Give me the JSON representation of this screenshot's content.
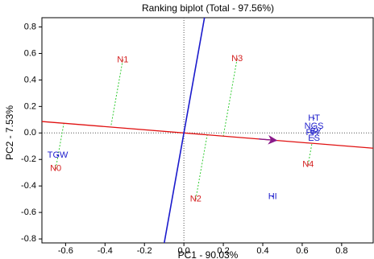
{
  "chart_data": {
    "type": "biplot",
    "title": "Ranking biplot (Total - 97.56%)",
    "x_label": "PC1 - 90.03%",
    "y_label": "PC2 - 7.53%",
    "xlim": [
      -0.72,
      0.96
    ],
    "ylim": [
      -0.83,
      0.87
    ],
    "xticks": [
      -0.6,
      -0.4,
      -0.2,
      {
        "value": 0,
        "label": "0.0"
      },
      0.2,
      0.4,
      0.6,
      0.8
    ],
    "yticks": [
      -0.8,
      -0.6,
      -0.4,
      -0.2,
      {
        "value": 0,
        "label": "0.0"
      },
      0.2,
      0.4,
      0.6,
      0.8
    ],
    "genotypes": {
      "color": "#d42020",
      "labels": [
        "N0",
        "N1",
        "N2",
        "N3",
        "N4"
      ],
      "x": [
        -0.65,
        -0.31,
        0.06,
        0.27,
        0.63
      ],
      "y": [
        -0.27,
        0.55,
        -0.5,
        0.56,
        -0.24
      ]
    },
    "traits": {
      "color": "#1c1ccc",
      "labels": [
        "TGW",
        "HT",
        "NGS",
        "BY",
        "PH",
        "ES",
        "HI"
      ],
      "x": [
        -0.64,
        0.66,
        0.66,
        0.67,
        0.65,
        0.66,
        0.45
      ],
      "y": [
        -0.17,
        0.11,
        0.05,
        0.01,
        0.0,
        -0.04,
        -0.48
      ]
    }
  }
}
